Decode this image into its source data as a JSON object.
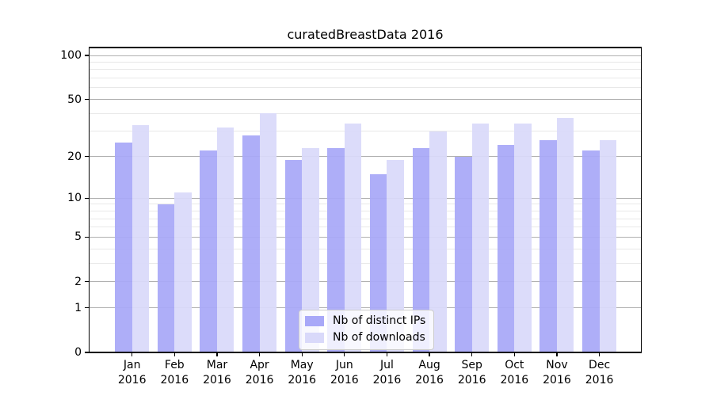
{
  "chart_data": {
    "type": "bar",
    "title": "curatedBreastData 2016",
    "categories": [
      "Jan 2016",
      "Feb 2016",
      "Mar 2016",
      "Apr 2016",
      "May 2016",
      "Jun 2016",
      "Jul 2016",
      "Aug 2016",
      "Sep 2016",
      "Oct 2016",
      "Nov 2016",
      "Dec 2016"
    ],
    "series": [
      {
        "name": "Nb of distinct IPs",
        "color": "#a8a8f8",
        "values": [
          25,
          9,
          22,
          28,
          19,
          23,
          15,
          23,
          20,
          24,
          26,
          22
        ]
      },
      {
        "name": "Nb of downloads",
        "color": "#d9d9fa",
        "values": [
          33,
          11,
          32,
          40,
          23,
          34,
          19,
          30,
          34,
          34,
          37,
          26
        ]
      }
    ],
    "y_axis": {
      "scale": "symlog-log1p",
      "major_ticks": [
        0,
        1,
        2,
        5,
        10,
        20,
        50,
        100
      ],
      "minor_gridlines": [
        3,
        4,
        6,
        7,
        8,
        9,
        30,
        40,
        60,
        70,
        80,
        90
      ],
      "ylim": [
        0,
        114
      ]
    },
    "grid": "horizontal major+minor, drawn under translucent bars",
    "legend_position": "inside lower-center"
  },
  "colors": {
    "background": "#ffffff",
    "axis": "#000000",
    "grid_major": "#b0b0b0",
    "grid_minor": "#e8e8e8",
    "legend_border": "#cccccc",
    "legend_background": "rgba(255,255,255,0.8)"
  }
}
